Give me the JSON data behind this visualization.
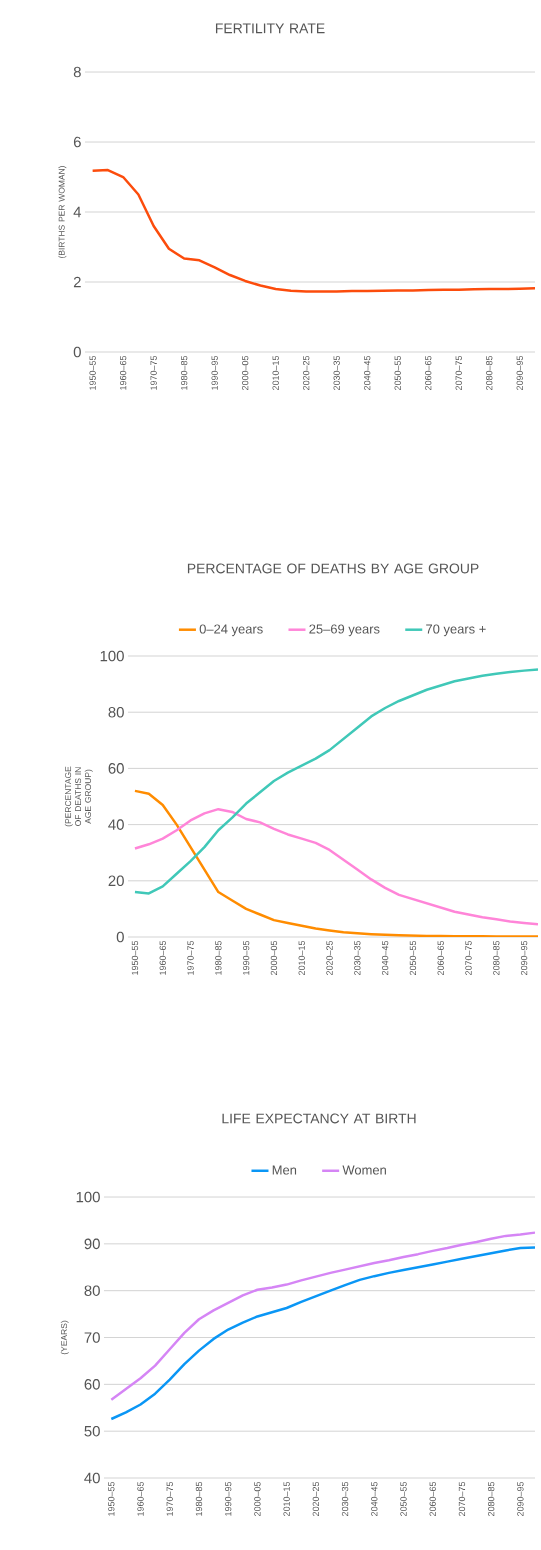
{
  "chart_data": [
    {
      "type": "line",
      "title": "FERTILITY RATE",
      "ylabel": "(BIRTHS PER WOMAN)",
      "categories": [
        "1950–55",
        null,
        "1960–65",
        null,
        "1970–75",
        null,
        "1980–85",
        null,
        "1990–95",
        null,
        "2000–05",
        null,
        "2010–15",
        null,
        "2020–25",
        null,
        "2030–35",
        null,
        "2040–45",
        null,
        "2050–55",
        null,
        "2060–65",
        null,
        "2070–75",
        null,
        "2080–85",
        null,
        "2090–95",
        null
      ],
      "series": [
        {
          "color": "#fc4c0c",
          "values": [
            5.18,
            5.2,
            5.0,
            4.5,
            3.6,
            2.95,
            2.67,
            2.62,
            2.42,
            2.2,
            2.03,
            1.9,
            1.8,
            1.75,
            1.73,
            1.73,
            1.73,
            1.74,
            1.74,
            1.75,
            1.76,
            1.76,
            1.77,
            1.78,
            1.78,
            1.79,
            1.8,
            1.8,
            1.81,
            1.82
          ]
        }
      ],
      "ylim": [
        0,
        8
      ],
      "yticks": [
        0,
        2,
        4,
        6,
        8
      ],
      "grid": "y"
    },
    {
      "type": "line",
      "title": "PERCENTAGE OF DEATHS BY AGE GROUP",
      "ylabel": "(PERCENTAGE OF DEATHS IN AGE GROUP)",
      "categories": [
        "1950–55",
        null,
        "1960–65",
        null,
        "1970–75",
        null,
        "1980–85",
        null,
        "1990–95",
        null,
        "2000–05",
        null,
        "2010–15",
        null,
        "2020–25",
        null,
        "2030–35",
        null,
        "2040–45",
        null,
        "2050–55",
        null,
        "2060–65",
        null,
        "2070–75",
        null,
        "2080–85",
        null,
        "2090–95",
        null
      ],
      "series": [
        {
          "name": "0–24 years",
          "color": "#ff8c00",
          "values": [
            52,
            51,
            47,
            40,
            32,
            24,
            16,
            13,
            10,
            8,
            6,
            5,
            4,
            3,
            2.3,
            1.7,
            1.3,
            1.0,
            0.8,
            0.6,
            0.5,
            0.4,
            0.4,
            0.3,
            0.3,
            0.3,
            0.2,
            0.2,
            0.2,
            0.2
          ]
        },
        {
          "name": "25–69 years",
          "color": "#ff85d8",
          "values": [
            31.5,
            33,
            35,
            38,
            41.5,
            44,
            45.5,
            44.5,
            42,
            40.8,
            38.5,
            36.5,
            35,
            33.5,
            31,
            27.5,
            24,
            20.5,
            17.5,
            15,
            13.5,
            12,
            10.5,
            9,
            8,
            7,
            6.3,
            5.5,
            5,
            4.5
          ]
        },
        {
          "name": "70 years +",
          "color": "#40c8b8",
          "values": [
            16,
            15.5,
            18,
            22.5,
            27,
            32,
            38,
            42.5,
            47.5,
            51.5,
            55.5,
            58.5,
            61,
            63.5,
            66.5,
            70.5,
            74.5,
            78.5,
            81.5,
            84,
            86,
            88,
            89.5,
            91,
            92,
            93,
            93.7,
            94.3,
            94.8,
            95.2
          ]
        }
      ],
      "ylim": [
        0,
        100
      ],
      "yticks": [
        0,
        20,
        40,
        60,
        80,
        100
      ],
      "grid": "y",
      "legend": "top"
    },
    {
      "type": "line",
      "title": "LIFE EXPECTANCY AT BIRTH",
      "ylabel": "(YEARS)",
      "categories": [
        "1950–55",
        null,
        "1960–65",
        null,
        "1970–75",
        null,
        "1980–85",
        null,
        "1990–95",
        null,
        "2000–05",
        null,
        "2010–15",
        null,
        "2020–25",
        null,
        "2030–35",
        null,
        "2040–45",
        null,
        "2050–55",
        null,
        "2060–65",
        null,
        "2070–75",
        null,
        "2080–85",
        null,
        "2090–95",
        null
      ],
      "series": [
        {
          "name": "Men",
          "color": "#0a96f5",
          "values": [
            52.6,
            54,
            55.7,
            58,
            61,
            64.3,
            67.2,
            69.7,
            71.7,
            73.2,
            74.5,
            75.4,
            76.3,
            77.6,
            78.8,
            80,
            81.2,
            82.3,
            83.1,
            83.8,
            84.4,
            85,
            85.6,
            86.2,
            86.8,
            87.4,
            88,
            88.6,
            89.1,
            89.2
          ]
        },
        {
          "name": "Women",
          "color": "#d585f5",
          "values": [
            56.7,
            59,
            61.3,
            64,
            67.5,
            71,
            73.9,
            75.8,
            77.4,
            79,
            80.2,
            80.7,
            81.3,
            82.2,
            83,
            83.8,
            84.5,
            85.2,
            85.9,
            86.5,
            87.2,
            87.8,
            88.5,
            89.1,
            89.8,
            90.4,
            91.1,
            91.7,
            92,
            92.4
          ]
        }
      ],
      "ylim": [
        40,
        100
      ],
      "yticks": [
        40,
        50,
        60,
        70,
        80,
        90,
        100
      ],
      "grid": "y",
      "legend": "top"
    }
  ]
}
